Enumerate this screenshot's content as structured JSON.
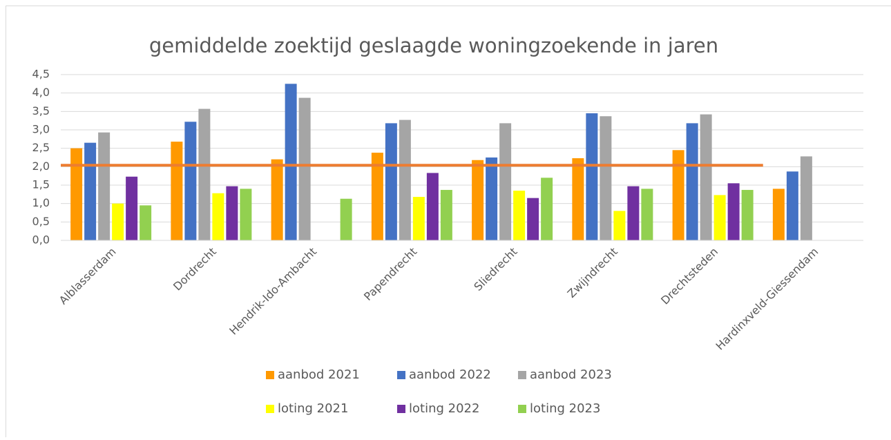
{
  "chart_data": {
    "type": "bar",
    "title": "gemiddelde zoektijd geslaagde woningzoekende  in jaren",
    "categories": [
      "Alblasserdam",
      "Dordrecht",
      "Hendrik-Ido-Ambacht",
      "Papendrecht",
      "Sliedrecht",
      "Zwijndrecht",
      "Drechtsteden",
      "Hardinxveld-Giessendam"
    ],
    "series": [
      {
        "name": "aanbod 2021",
        "color": "#FF9900",
        "values": [
          2.5,
          2.68,
          2.2,
          2.38,
          2.18,
          2.23,
          2.45,
          1.4
        ]
      },
      {
        "name": "aanbod 2022",
        "color": "#4472C4",
        "values": [
          2.65,
          3.22,
          4.25,
          3.18,
          2.25,
          3.45,
          3.18,
          1.87
        ]
      },
      {
        "name": "aanbod 2023",
        "color": "#A5A5A5",
        "values": [
          2.93,
          3.57,
          3.87,
          3.27,
          3.18,
          3.37,
          3.42,
          2.28
        ]
      },
      {
        "name": "loting 2021",
        "color": "#FFFF00",
        "values": [
          1.0,
          1.28,
          null,
          1.18,
          1.35,
          0.8,
          1.23,
          null
        ]
      },
      {
        "name": "loting 2022",
        "color": "#7030A0",
        "values": [
          1.73,
          1.47,
          null,
          1.83,
          1.15,
          1.47,
          1.55,
          null
        ]
      },
      {
        "name": "loting 2023",
        "color": "#92D050",
        "values": [
          0.95,
          1.4,
          1.13,
          1.37,
          1.7,
          1.4,
          1.37,
          null
        ]
      }
    ],
    "reference_line": {
      "value": 2.04,
      "color": "#ED7D31"
    },
    "ylim": [
      0,
      4.5
    ],
    "yticks": [
      {
        "value": 0,
        "label": "0,0"
      },
      {
        "value": 0.5,
        "label": "0,5"
      },
      {
        "value": 1,
        "label": "1,0"
      },
      {
        "value": 1.5,
        "label": "1,5"
      },
      {
        "value": 2,
        "label": "2,0"
      },
      {
        "value": 2.5,
        "label": "2,5"
      },
      {
        "value": 3,
        "label": "3,0"
      },
      {
        "value": 3.5,
        "label": "3,5"
      },
      {
        "value": 4,
        "label": "4,0"
      },
      {
        "value": 4.5,
        "label": "4,5"
      }
    ],
    "grid": true
  }
}
